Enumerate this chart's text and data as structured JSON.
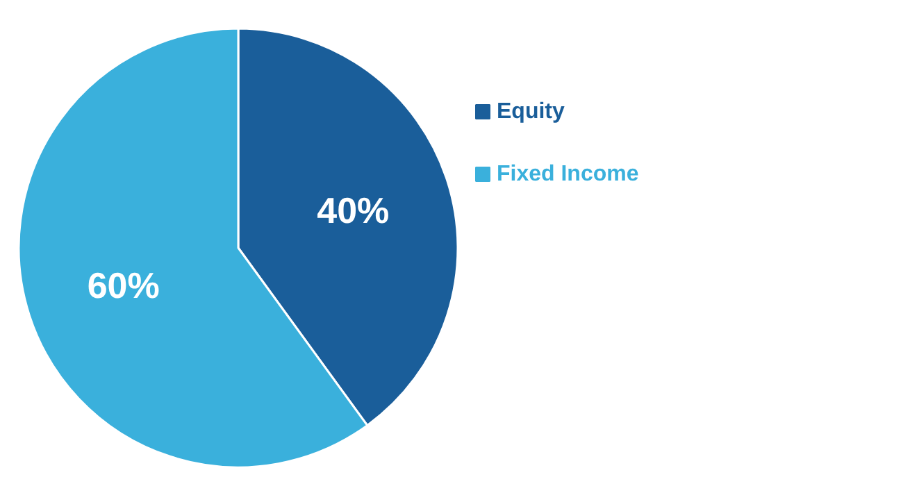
{
  "chart_data": {
    "type": "pie",
    "categories": [
      "Equity",
      "Fixed Income"
    ],
    "values": [
      40,
      60
    ],
    "colors": [
      "#1a5e9a",
      "#3ab0dc"
    ],
    "value_labels": [
      "40%",
      "60%"
    ],
    "legend": "right"
  }
}
